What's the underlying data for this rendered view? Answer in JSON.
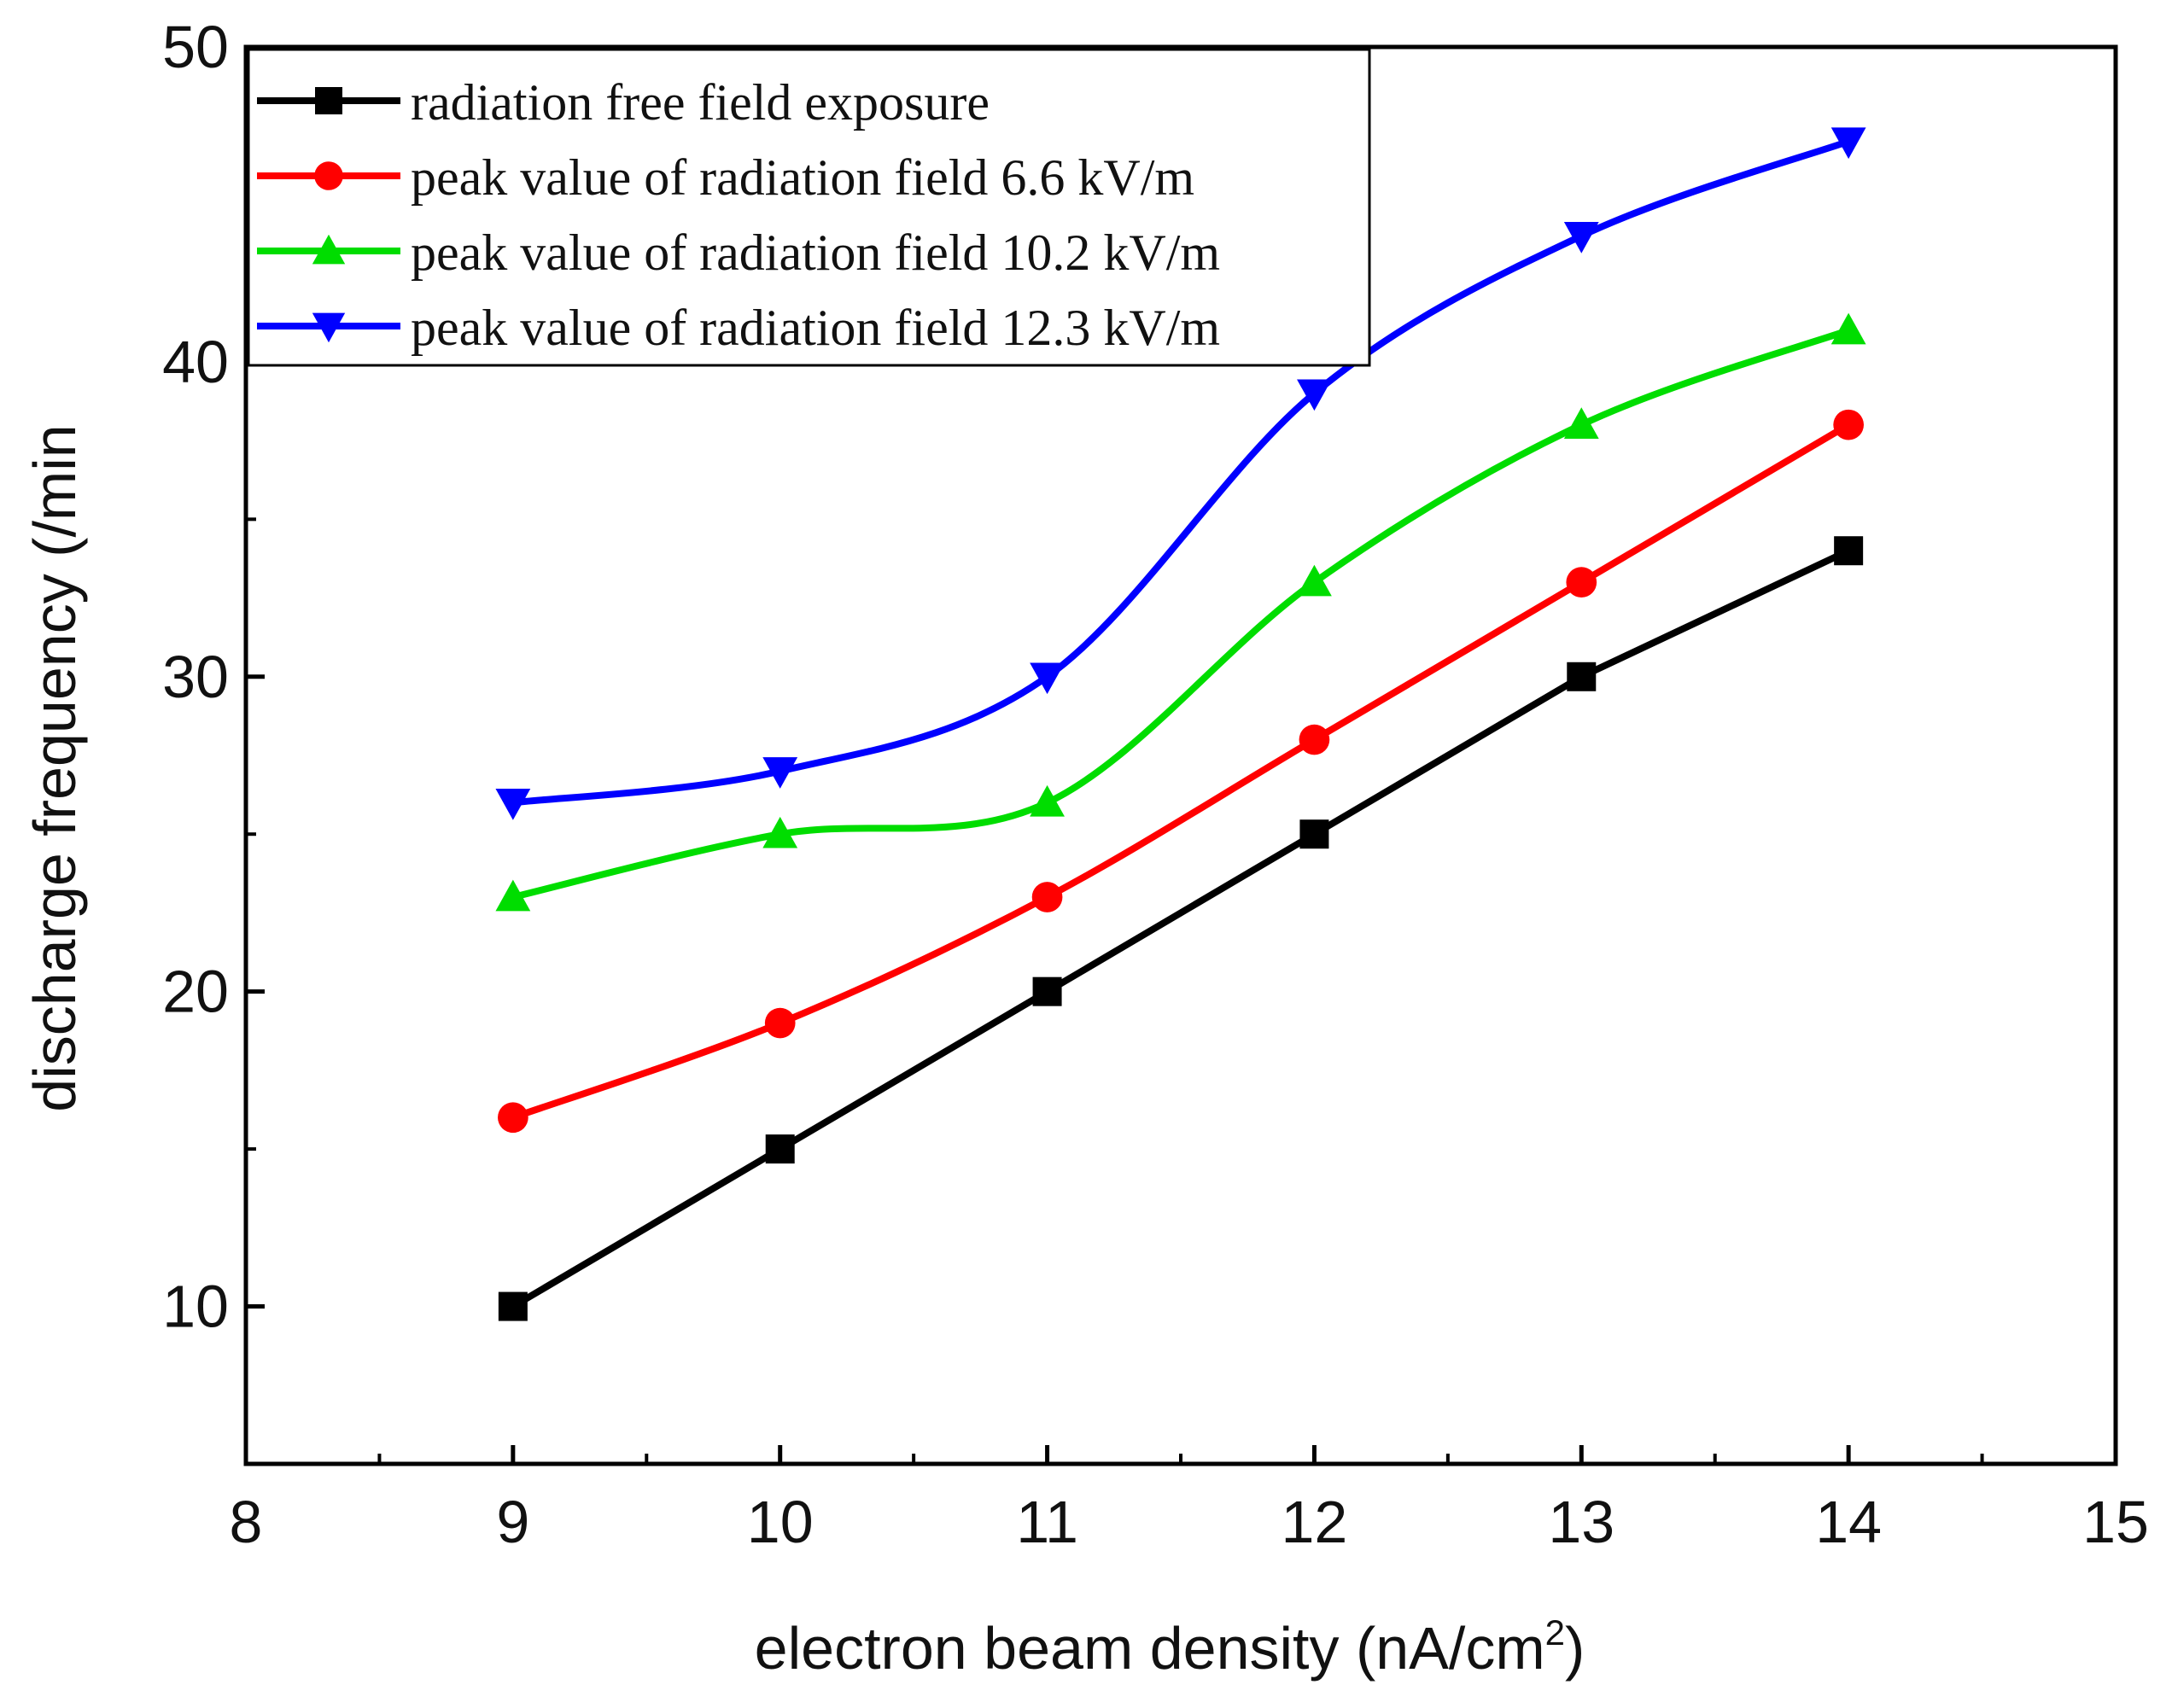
{
  "chart_data": {
    "type": "line",
    "xlabel": "electron beam density (nA/cm",
    "xlabel_sup": "2",
    "xlabel_suffix": ")",
    "ylabel": "discharge frequency (/min",
    "xlim": [
      8,
      15
    ],
    "ylim": [
      5,
      50
    ],
    "x_ticks": [
      8,
      9,
      10,
      11,
      12,
      13,
      14,
      15
    ],
    "y_ticks": [
      10,
      20,
      30,
      40,
      50
    ],
    "grid": false,
    "legend_position": "top-left",
    "x": [
      9,
      10,
      11,
      12,
      13,
      14
    ],
    "series": [
      {
        "name": "radiation free field exposure",
        "values": [
          10,
          15,
          20,
          25,
          30,
          34
        ],
        "color": "#000000",
        "marker": "square"
      },
      {
        "name": "peak value of radiation field 6.6 kV/m",
        "values": [
          16,
          19,
          23,
          28,
          33,
          38
        ],
        "color": "#ff0000",
        "marker": "circle"
      },
      {
        "name": "peak value of radiation field 10.2 kV/m",
        "values": [
          23,
          25,
          26,
          33,
          38,
          41
        ],
        "color": "#00dd00",
        "marker": "triangle-up"
      },
      {
        "name": "peak value of radiation field 12.3 kV/m",
        "values": [
          26,
          27,
          30,
          39,
          44,
          47
        ],
        "color": "#0000ff",
        "marker": "triangle-down"
      }
    ]
  }
}
